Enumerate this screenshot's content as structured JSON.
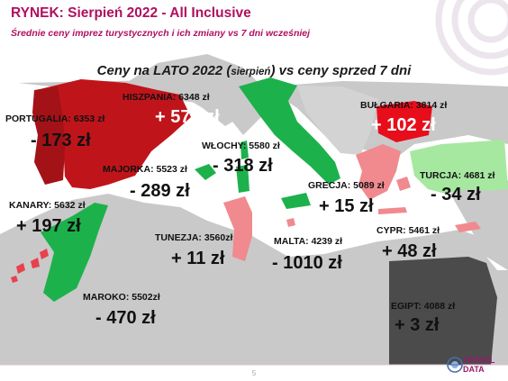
{
  "header": {
    "title": "RYNEK: Sierpień 2022 - All Inclusive",
    "subtitle": "Średnie ceny imprez turystycznych i ich zmiany vs 7 dni wcześniej"
  },
  "map_title": {
    "main": "Ceny na LATO 2022 (",
    "small": "sierpień",
    "rest": ") vs ceny sprzed 7 dni"
  },
  "colors": {
    "increase_strong": "#c0141b",
    "increase_light": "#e8414e",
    "increase_pale": "#f08a8f",
    "decrease": "#1db14b",
    "decrease_light": "#a6e8a0",
    "egypt": "#4b4b4b",
    "land": "#c9c9c9",
    "sea": "#ffffff",
    "accent": "#b01060"
  },
  "destinations": [
    {
      "country": "PORTUGALIA: 6353 zł",
      "change": "- 173 zł"
    },
    {
      "country": "HISZPANIA: 6348 zł",
      "change": "+ 579 zł"
    },
    {
      "country": "MAJORKA: 5523 zł",
      "change": "- 289 zł"
    },
    {
      "country": "WŁOCHY: 5580 zł",
      "change": "- 318 zł"
    },
    {
      "country": "BUŁGARIA: 3814 zł",
      "change": "+ 102 zł"
    },
    {
      "country": "TURCJA: 4681 zł",
      "change": "- 34 zł"
    },
    {
      "country": "GRECJA: 5089 zł",
      "change": "+ 15 zł"
    },
    {
      "country": "KANARY: 5632 zł",
      "change": "+ 197 zł"
    },
    {
      "country": "TUNEZJA: 3560zł",
      "change": "+ 11 zł"
    },
    {
      "country": "MALTA: 4239 zł",
      "change": "- 1010 zł"
    },
    {
      "country": "CYPR: 5461 zł",
      "change": "+ 48 zł"
    },
    {
      "country": "MAROKO: 5502zł",
      "change": "- 470 zł"
    },
    {
      "country": "EGIPT: 4088 zł",
      "change": "+ 3 zł"
    }
  ],
  "footer": {
    "page_number": "5",
    "logo_line1": "TRAVEL",
    "logo_line2": "DATA"
  }
}
